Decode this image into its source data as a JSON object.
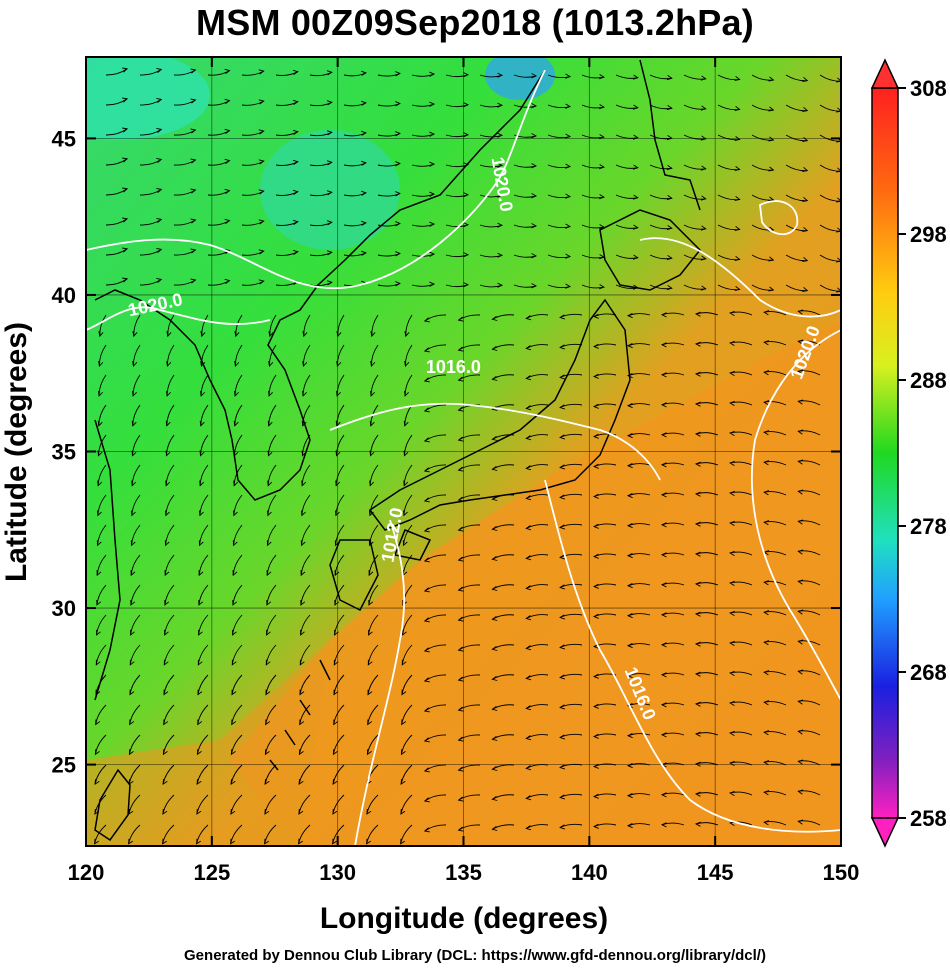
{
  "title": "MSM 00Z09Sep2018 (1013.2hPa)",
  "footer": "Generated by Dennou Club Library (DCL: https://www.gfd-dennou.org/library/dcl/)",
  "map": {
    "xlabel": "Longitude (degrees)",
    "ylabel": "Latitude  (degrees)",
    "xlim": [
      120,
      150
    ],
    "ylim": [
      22.4,
      47.6
    ],
    "xticks": [
      "120",
      "125",
      "130",
      "135",
      "140",
      "145",
      "150"
    ],
    "yticks": [
      "25",
      "30",
      "35",
      "40",
      "45"
    ],
    "contour_labels": [
      {
        "text": "1020.0",
        "lon": 136.3,
        "lat": 43.5,
        "angle": 80
      },
      {
        "text": "1020.0",
        "lon": 122.8,
        "lat": 39.5,
        "angle": -12
      },
      {
        "text": "1016.0",
        "lon": 134.6,
        "lat": 37.5,
        "angle": 0
      },
      {
        "text": "1012.0",
        "lon": 132.4,
        "lat": 32.3,
        "angle": -80
      },
      {
        "text": "1016.0",
        "lon": 141.8,
        "lat": 27.2,
        "angle": 68
      },
      {
        "text": "1020.0",
        "lon": 148.8,
        "lat": 38.1,
        "angle": -70
      }
    ]
  },
  "colorbar": {
    "ticks": [
      "308",
      "298",
      "288",
      "278",
      "268",
      "258"
    ],
    "range": [
      258,
      308
    ]
  }
}
